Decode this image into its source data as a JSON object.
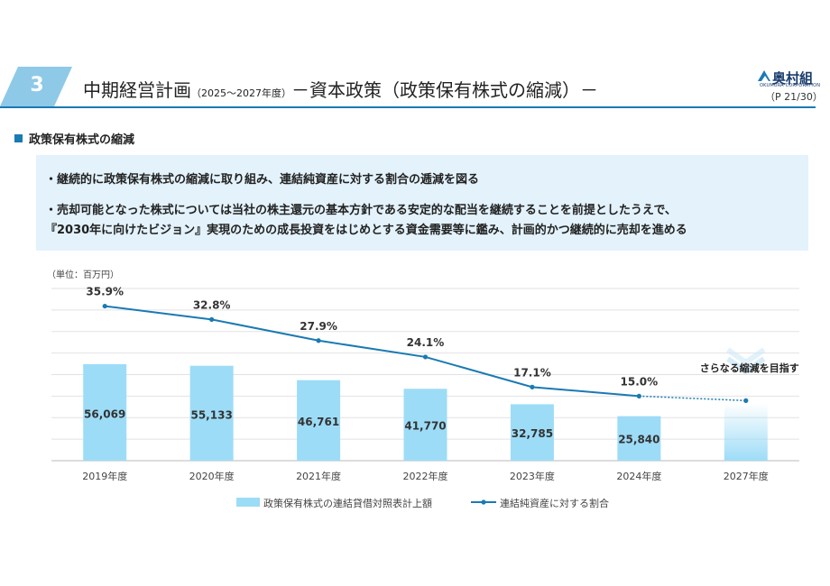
{
  "header": {
    "section_number": "3",
    "title_main": "中期経営計画",
    "title_period": "（2025～2027年度）",
    "title_sub": "－資本政策（政策保有株式の縮減）－",
    "logo_name": "奥村組",
    "logo_sub": "OKUMURA CORPORATION",
    "page": "（P 21/30）",
    "accent_color": "#1a7ab3",
    "badge_color": "#8ec9e8"
  },
  "section": {
    "title": "政策保有株式の縮減",
    "bullets": [
      "・継続的に政策保有株式の縮減に取り組み、連結純資産に対する割合の逓減を図る",
      "・売却可能となった株式については当社の株主還元の基本方針である安定的な配当を継続することを前提としたうえで、",
      "『2030年に向けたビジョン』実現のための成長投資をはじめとする資金需要等に鑑み、計画的かつ継続的に売却を進める"
    ]
  },
  "chart_data": {
    "type": "bar",
    "unit_label": "（単位：百万円）",
    "categories": [
      "2019年度",
      "2020年度",
      "2021年度",
      "2022年度",
      "2023年度",
      "2024年度",
      "2027年度"
    ],
    "series": [
      {
        "name": "政策保有株式の連結貸借対照表計上額",
        "type": "bar",
        "values": [
          56069,
          55133,
          46761,
          41770,
          32785,
          25840,
          null
        ],
        "labels": [
          "56,069",
          "55,133",
          "46,761",
          "41,770",
          "32,785",
          "25,840",
          ""
        ],
        "color": "#9ddcf7"
      },
      {
        "name": "連結純資産に対する割合",
        "type": "line",
        "values": [
          35.9,
          32.8,
          27.9,
          24.1,
          17.1,
          15.0,
          null
        ],
        "labels": [
          "35.9%",
          "32.8%",
          "27.9%",
          "24.1%",
          "17.1%",
          "15.0%",
          ""
        ],
        "color": "#1a7ab3"
      }
    ],
    "target_annotation": "さらなる縮減を目指す",
    "bar_ylim": [
      0,
      100000
    ],
    "pct_ylim": [
      0,
      40
    ],
    "grid": true,
    "legend_position": "bottom"
  }
}
